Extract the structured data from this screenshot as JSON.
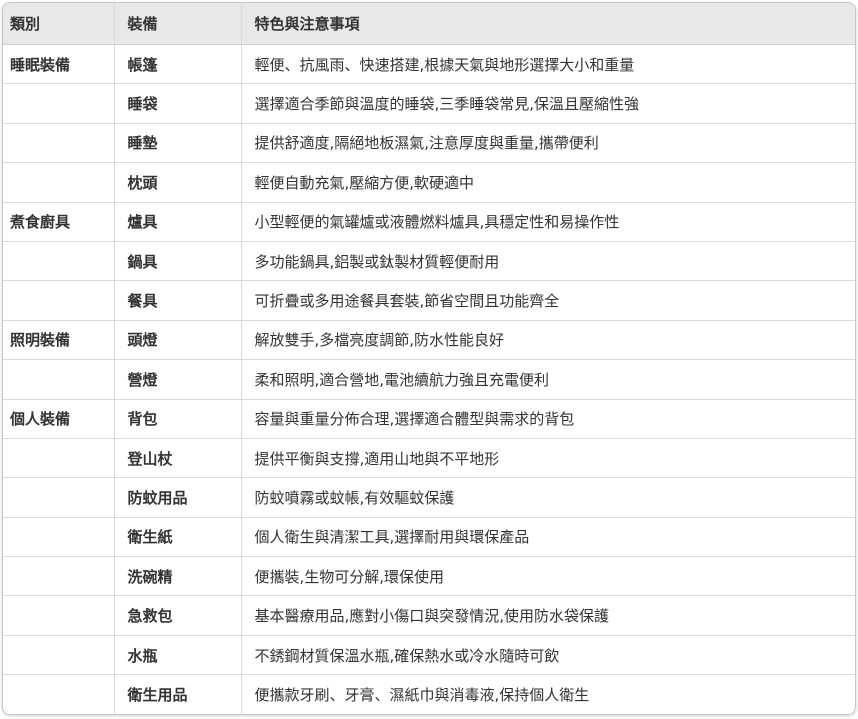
{
  "table": {
    "columns": [
      {
        "label": "類別"
      },
      {
        "label": "裝備"
      },
      {
        "label": "特色與注意事項"
      }
    ],
    "rows": [
      {
        "category": "睡眠裝備",
        "equipment": "帳篷",
        "note": "輕便、抗風雨、快速搭建,根據天氣與地形選擇大小和重量"
      },
      {
        "category": "",
        "equipment": "睡袋",
        "note": "選擇適合季節與溫度的睡袋,三季睡袋常見,保溫且壓縮性強"
      },
      {
        "category": "",
        "equipment": "睡墊",
        "note": "提供舒適度,隔絕地板濕氣,注意厚度與重量,攜帶便利"
      },
      {
        "category": "",
        "equipment": "枕頭",
        "note": "輕便自動充氣,壓縮方便,軟硬適中"
      },
      {
        "category": "煮食廚具",
        "equipment": "爐具",
        "note": "小型輕便的氣罐爐或液體燃料爐具,具穩定性和易操作性"
      },
      {
        "category": "",
        "equipment": "鍋具",
        "note": "多功能鍋具,鋁製或鈦製材質輕便耐用"
      },
      {
        "category": "",
        "equipment": "餐具",
        "note": "可折疊或多用途餐具套裝,節省空間且功能齊全"
      },
      {
        "category": "照明裝備",
        "equipment": "頭燈",
        "note": "解放雙手,多檔亮度調節,防水性能良好"
      },
      {
        "category": "",
        "equipment": "營燈",
        "note": "柔和照明,適合營地,電池續航力強且充電便利"
      },
      {
        "category": "個人裝備",
        "equipment": "背包",
        "note": "容量與重量分佈合理,選擇適合體型與需求的背包"
      },
      {
        "category": "",
        "equipment": "登山杖",
        "note": "提供平衡與支撐,適用山地與不平地形"
      },
      {
        "category": "",
        "equipment": "防蚊用品",
        "note": "防蚊噴霧或蚊帳,有效驅蚊保護"
      },
      {
        "category": "",
        "equipment": "衛生紙",
        "note": "個人衛生與清潔工具,選擇耐用與環保產品"
      },
      {
        "category": "",
        "equipment": "洗碗精",
        "note": "便攜裝,生物可分解,環保使用"
      },
      {
        "category": "",
        "equipment": "急救包",
        "note": "基本醫療用品,應對小傷口與突發情況,使用防水袋保護"
      },
      {
        "category": "",
        "equipment": "水瓶",
        "note": "不銹鋼材質保溫水瓶,確保熱水或冷水隨時可飲"
      },
      {
        "category": "",
        "equipment": "衛生用品",
        "note": "便攜款牙刷、牙膏、濕紙巾與消毒液,保持個人衛生"
      }
    ],
    "colors": {
      "header_bg": "#e8e8e8",
      "inner_border": "#d9d9d9",
      "outer_border": "#c6c6c6",
      "text": "#333333",
      "row_bg": "#ffffff"
    }
  }
}
